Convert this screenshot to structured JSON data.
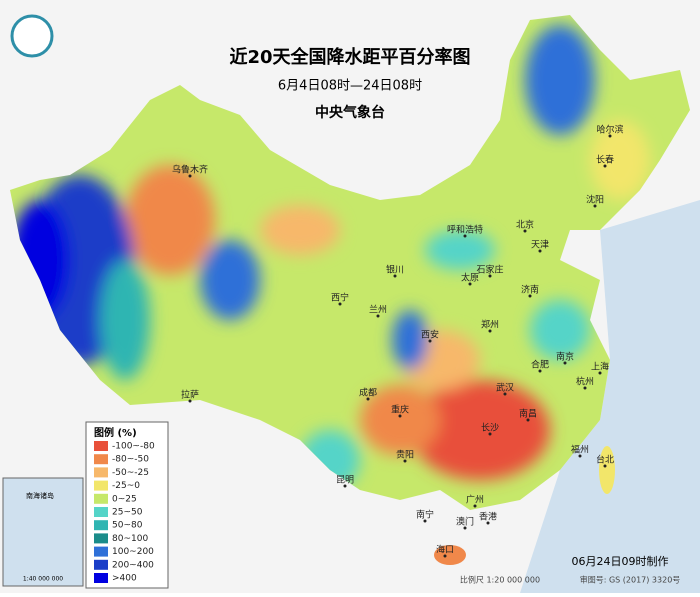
{
  "header": {
    "title": "近20天全国降水距平百分率图",
    "date_range": "6月4日08时—24日08时",
    "issuer": "中央气象台"
  },
  "legend": {
    "title": "图例 (%)",
    "items": [
      {
        "label": "-100~-80",
        "color": "#e8503a"
      },
      {
        "label": "-80~-50",
        "color": "#f0884a"
      },
      {
        "label": "-50~-25",
        "color": "#f7b86a"
      },
      {
        "label": "-25~0",
        "color": "#f2e66a"
      },
      {
        "label": "0~25",
        "color": "#c6e86a"
      },
      {
        "label": "25~50",
        "color": "#55d4c8"
      },
      {
        "label": "50~80",
        "color": "#2fb5b2"
      },
      {
        "label": "80~100",
        "color": "#1a8c8a"
      },
      {
        "label": "100~200",
        "color": "#2f70d8"
      },
      {
        "label": "200~400",
        "color": "#1a3ec8"
      },
      {
        "label": ">400",
        "color": "#0000e0"
      }
    ]
  },
  "cities": [
    "乌鲁木齐",
    "哈尔滨",
    "长春",
    "沈阳",
    "呼和浩特",
    "北京",
    "天津",
    "石家庄",
    "太原",
    "济南",
    "银川",
    "西宁",
    "兰州",
    "郑州",
    "西安",
    "合肥",
    "南京",
    "上海",
    "杭州",
    "武汉",
    "成都",
    "重庆",
    "长沙",
    "南昌",
    "贵阳",
    "福州",
    "台北",
    "昆明",
    "南宁",
    "广州",
    "澳门",
    "香港",
    "海口",
    "拉萨"
  ],
  "inset": {
    "label": "南海诸岛",
    "scale": "1:40 000 000"
  },
  "footer": {
    "made": "06月24日09时制作",
    "scale": "比例尺 1:20 000 000",
    "approval": "审图号: GS (2017) 3320号"
  }
}
